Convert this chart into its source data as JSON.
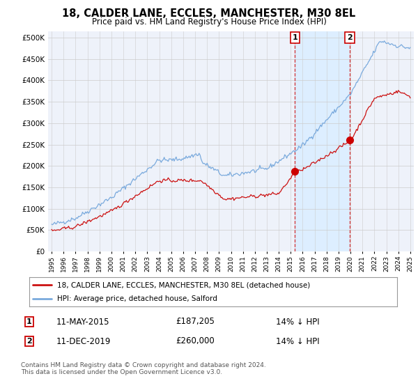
{
  "title": "18, CALDER LANE, ECCLES, MANCHESTER, M30 8EL",
  "subtitle": "Price paid vs. HM Land Registry's House Price Index (HPI)",
  "ylabel_ticks": [
    0,
    50000,
    100000,
    150000,
    200000,
    250000,
    300000,
    350000,
    400000,
    450000,
    500000
  ],
  "ylim": [
    0,
    515000
  ],
  "xlim_start": 1994.7,
  "xlim_end": 2025.3,
  "xticks": [
    1995,
    1996,
    1997,
    1998,
    1999,
    2000,
    2001,
    2002,
    2003,
    2004,
    2005,
    2006,
    2007,
    2008,
    2009,
    2010,
    2011,
    2012,
    2013,
    2014,
    2015,
    2016,
    2017,
    2018,
    2019,
    2020,
    2021,
    2022,
    2023,
    2024,
    2025
  ],
  "hpi_color": "#7aaadd",
  "price_color": "#cc1111",
  "marker_color": "#cc0000",
  "sale1_year": 2015.36,
  "sale1_price": 187205,
  "sale2_year": 2019.94,
  "sale2_price": 260000,
  "legend_line1": "18, CALDER LANE, ECCLES, MANCHESTER, M30 8EL (detached house)",
  "legend_line2": "HPI: Average price, detached house, Salford",
  "annotation1_date": "11-MAY-2015",
  "annotation1_price": "£187,205",
  "annotation1_hpi": "14% ↓ HPI",
  "annotation2_date": "11-DEC-2019",
  "annotation2_price": "£260,000",
  "annotation2_hpi": "14% ↓ HPI",
  "footnote": "Contains HM Land Registry data © Crown copyright and database right 2024.\nThis data is licensed under the Open Government Licence v3.0.",
  "shade_color": "#ddeeff",
  "background_plot": "#eef2fa",
  "background_fig": "#ffffff",
  "grid_color": "#cccccc"
}
